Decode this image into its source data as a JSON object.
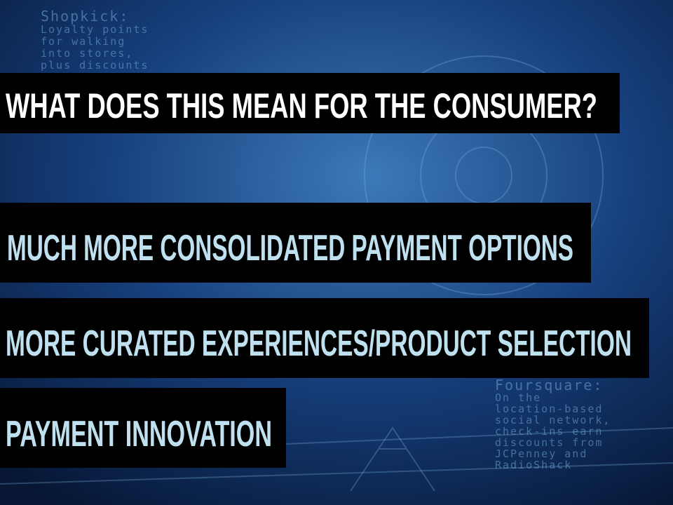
{
  "slide": {
    "title": "WHAT DOES THIS MEAN FOR THE CONSUMER?",
    "bullets": [
      "MUCH MORE CONSOLIDATED PAYMENT OPTIONS",
      "MORE CURATED EXPERIENCES/PRODUCT SELECTION",
      "PAYMENT INNOVATION"
    ]
  },
  "background": {
    "shopkick": [
      "Shopkick:",
      "Loyalty points",
      "for walking",
      "into stores,",
      "plus discounts"
    ],
    "foursquare": [
      "Foursquare:",
      "On the",
      "location-based",
      "social network,",
      "check-ins earn",
      "discounts from",
      "JCPenney and",
      "RadioShack"
    ]
  }
}
